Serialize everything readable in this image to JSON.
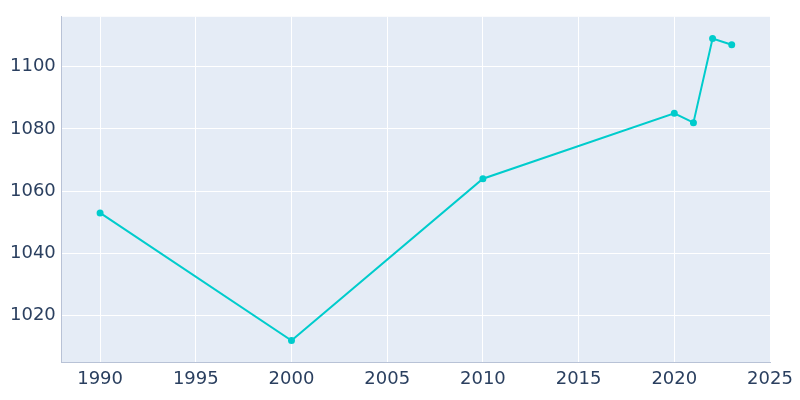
{
  "chart_data": {
    "type": "line",
    "x": [
      1990,
      2000,
      2010,
      2020,
      2021,
      2022,
      2023
    ],
    "values": [
      1053,
      1012,
      1064,
      1085,
      1082,
      1109,
      1107
    ],
    "color": "#00cccc",
    "marker": "circle",
    "xlim": [
      1988,
      2025
    ],
    "xticks": [
      1990,
      1995,
      2000,
      2005,
      2010,
      2015,
      2020,
      2025
    ],
    "ylim": [
      1005,
      1116
    ],
    "yticks": [
      1020,
      1040,
      1060,
      1080,
      1100
    ],
    "grid": true
  }
}
